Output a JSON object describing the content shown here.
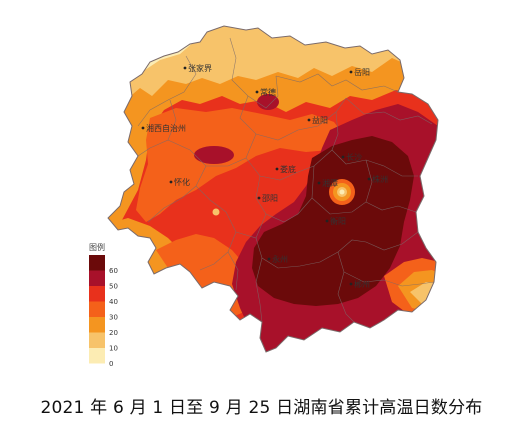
{
  "title": "2021 年 6 月 1 日至 9 月 25 日湖南省累计高温日数分布",
  "legend": {
    "title": "图例",
    "ticks": [
      "60",
      "50",
      "40",
      "30",
      "20",
      "10",
      "0"
    ],
    "colors": [
      "#6b0a0a",
      "#a8112a",
      "#e8311c",
      "#f4611a",
      "#f49520",
      "#f7c36a",
      "#fcecb3"
    ]
  },
  "cities": [
    {
      "name": "张家界"
    },
    {
      "name": "岳阳"
    },
    {
      "name": "常德"
    },
    {
      "name": "益阳"
    },
    {
      "name": "湘西自治州"
    },
    {
      "name": "长沙"
    },
    {
      "name": "娄底"
    },
    {
      "name": "怀化"
    },
    {
      "name": "湘潭"
    },
    {
      "name": "株洲"
    },
    {
      "name": "邵阳"
    },
    {
      "name": "衡阳"
    },
    {
      "name": "永州"
    },
    {
      "name": "郴州"
    }
  ],
  "colors": {
    "lt10": "#fcecb3",
    "c10_20": "#f7c36a",
    "c20_30": "#f49520",
    "c30_40": "#f4611a",
    "c40_50": "#e8311c",
    "c50_60": "#a8112a",
    "gt60": "#6b0a0a",
    "border": "#7a6a6a"
  }
}
